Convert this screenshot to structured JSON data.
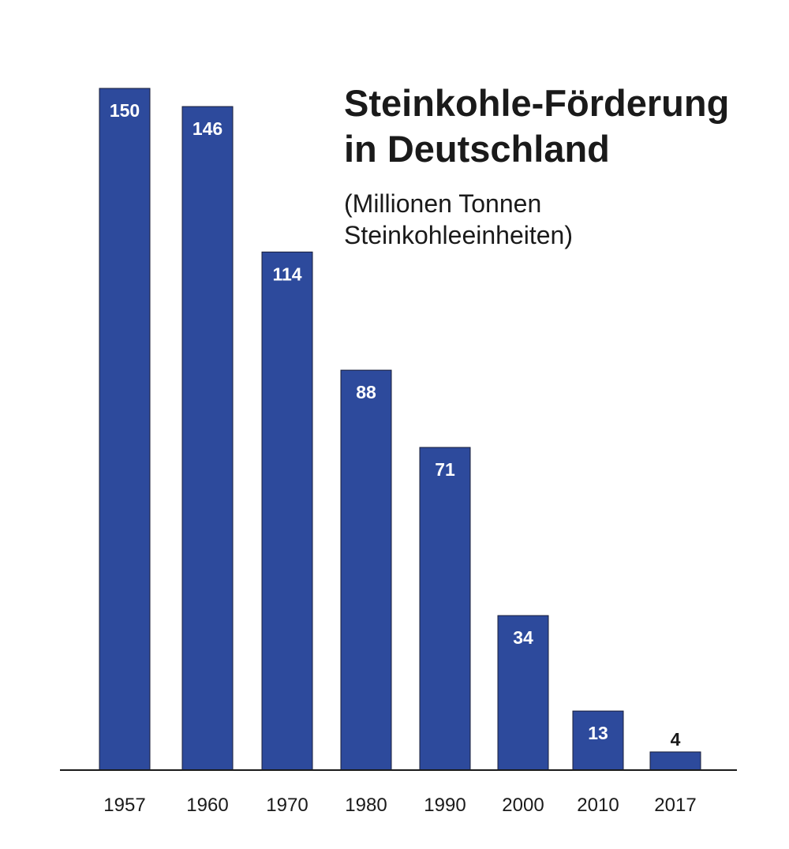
{
  "chart_data": {
    "type": "bar",
    "title_lines": [
      "Steinkohle-Förderung",
      "in Deutschland"
    ],
    "subtitle_lines": [
      "(Millionen Tonnen",
      "Steinkohleeinheiten)"
    ],
    "categories": [
      "1957",
      "1960",
      "1970",
      "1980",
      "1990",
      "2000",
      "2010",
      "2017"
    ],
    "values": [
      150,
      146,
      114,
      88,
      71,
      34,
      13,
      4
    ],
    "ylim": [
      0,
      150
    ],
    "grid": false,
    "legend": "none",
    "bar_color": "#2d4a9c",
    "label_color_inside": "#ffffff",
    "label_color_outside": "#1a1a1a"
  }
}
